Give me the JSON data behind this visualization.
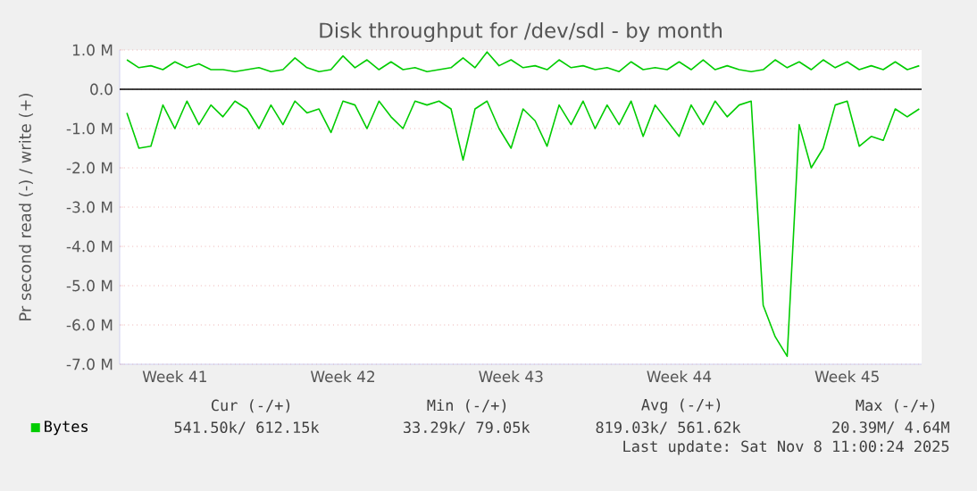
{
  "chart_data": {
    "type": "line",
    "title": "Disk throughput for /dev/sdl - by month",
    "ylabel": "Pr second read (-) / write (+)",
    "categories": [
      null,
      null,
      null,
      null,
      "Week 41",
      null,
      null,
      null,
      null,
      null,
      null,
      null,
      null,
      null,
      null,
      null,
      null,
      null,
      "Week 42",
      null,
      null,
      null,
      null,
      null,
      null,
      null,
      null,
      null,
      null,
      null,
      null,
      null,
      "Week 43",
      null,
      null,
      null,
      null,
      null,
      null,
      null,
      null,
      null,
      null,
      null,
      null,
      null,
      "Week 44",
      null,
      null,
      null,
      null,
      null,
      null,
      null,
      null,
      null,
      null,
      null,
      null,
      null,
      "Week 45",
      null,
      null,
      null,
      null,
      null,
      null
    ],
    "ylim": [
      -7,
      1
    ],
    "yticks": [
      {
        "value": 1,
        "label": "1.0 M"
      },
      {
        "value": 0,
        "label": "0.0"
      },
      {
        "value": -1,
        "label": "-1.0 M"
      },
      {
        "value": -2,
        "label": "-2.0 M"
      },
      {
        "value": -3,
        "label": "-3.0 M"
      },
      {
        "value": -4,
        "label": "-4.0 M"
      },
      {
        "value": -5,
        "label": "-5.0 M"
      },
      {
        "value": -6,
        "label": "-6.0 M"
      },
      {
        "value": -7,
        "label": "-7.0 M"
      }
    ],
    "grid": "y",
    "legend": "bottom",
    "ref_lines": [
      {
        "axis": "y",
        "value": 0,
        "color": "#000000"
      }
    ],
    "series": [
      {
        "name": "Bytes",
        "color": "#00cc00",
        "values": [
          -0.6,
          -1.5,
          -1.45,
          -0.4,
          -1.0,
          -0.3,
          -0.9,
          -0.4,
          -0.7,
          -0.3,
          -0.5,
          -1.0,
          -0.4,
          -0.9,
          -0.3,
          -0.6,
          -0.5,
          -1.1,
          -0.3,
          -0.4,
          -1.0,
          -0.3,
          -0.7,
          -1.0,
          -0.3,
          -0.4,
          -0.3,
          -0.5,
          -1.8,
          -0.5,
          -0.3,
          -1.0,
          -1.5,
          -0.5,
          -0.8,
          -1.45,
          -0.4,
          -0.9,
          -0.3,
          -1.0,
          -0.4,
          -0.9,
          -0.3,
          -1.2,
          -0.4,
          -0.8,
          -1.2,
          -0.4,
          -0.9,
          -0.3,
          -0.7,
          -0.4,
          -0.3,
          -5.5,
          -6.3,
          -6.8,
          -0.9,
          -2.0,
          -1.5,
          -0.4,
          -0.3,
          -1.45,
          -1.2,
          -1.3,
          -0.5,
          -0.7,
          -0.5
        ]
      },
      {
        "color": "#00cc00",
        "values": [
          0.75,
          0.55,
          0.6,
          0.5,
          0.7,
          0.55,
          0.65,
          0.5,
          0.5,
          0.45,
          0.5,
          0.55,
          0.45,
          0.5,
          0.8,
          0.55,
          0.45,
          0.5,
          0.85,
          0.55,
          0.75,
          0.5,
          0.7,
          0.5,
          0.55,
          0.45,
          0.5,
          0.55,
          0.8,
          0.55,
          0.95,
          0.6,
          0.75,
          0.55,
          0.6,
          0.5,
          0.75,
          0.55,
          0.6,
          0.5,
          0.55,
          0.45,
          0.7,
          0.5,
          0.55,
          0.5,
          0.7,
          0.5,
          0.75,
          0.5,
          0.6,
          0.5,
          0.45,
          0.5,
          0.75,
          0.55,
          0.7,
          0.5,
          0.75,
          0.55,
          0.7,
          0.5,
          0.6,
          0.5,
          0.7,
          0.5,
          0.6
        ]
      }
    ],
    "annotations": [
      "Cur (-/+)",
      "Min (-/+)",
      "Avg (-/+)",
      "Max (-/+)",
      "541.50k/ 612.15k",
      "33.29k/ 79.05k",
      "819.03k/ 561.62k",
      "20.39M/ 4.64M",
      "Last update: Sat Nov 8 11:00:24 2025"
    ]
  }
}
